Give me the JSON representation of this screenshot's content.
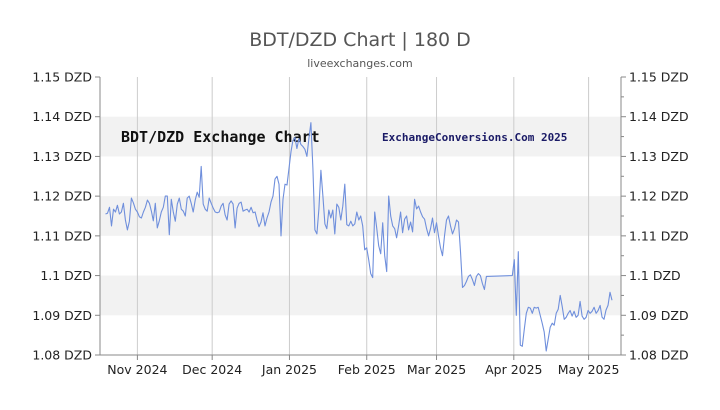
{
  "chart_data": {
    "type": "line",
    "title": "BDT/DZD Chart | 180 D",
    "subtitle": "liveexchanges.com",
    "watermark_left": "BDT/DZD Exchange Chart",
    "watermark_right": "ExchangeConversions.Com 2025",
    "ylim": [
      1.08,
      1.15
    ],
    "yticks": [
      {
        "value": 1.15,
        "label": "1.15 DZD"
      },
      {
        "value": 1.14,
        "label": "1.14 DZD"
      },
      {
        "value": 1.13,
        "label": "1.13 DZD"
      },
      {
        "value": 1.12,
        "label": "1.12 DZD"
      },
      {
        "value": 1.11,
        "label": "1.11 DZD"
      },
      {
        "value": 1.1,
        "label": "1.1 DZD"
      },
      {
        "value": 1.09,
        "label": "1.09 DZD"
      },
      {
        "value": 1.08,
        "label": "1.08 DZD"
      }
    ],
    "xticks": [
      {
        "label": "Nov 2024",
        "day": 0
      },
      {
        "label": "Dec 2024",
        "day": 30
      },
      {
        "label": "Jan 2025",
        "day": 61
      },
      {
        "label": "Feb 2025",
        "day": 92
      },
      {
        "label": "Mar 2025",
        "day": 120
      },
      {
        "label": "Apr 2025",
        "day": 151
      },
      {
        "label": "May 2025",
        "day": 181
      }
    ],
    "xlim": [
      -15,
      194
    ],
    "grid": true,
    "colors": {
      "line": "#6f8fdc",
      "band": "#f2f2f2",
      "grid": "#cccccc",
      "axis": "#888888"
    },
    "series": [
      {
        "values": [
          [
            -12.8,
            1.1155
          ],
          [
            -12.0,
            1.1157
          ],
          [
            -11.2,
            1.1172
          ],
          [
            -10.4,
            1.1125
          ],
          [
            -9.6,
            1.1167
          ],
          [
            -8.8,
            1.116
          ],
          [
            -8.0,
            1.1177
          ],
          [
            -7.2,
            1.1155
          ],
          [
            -6.4,
            1.116
          ],
          [
            -5.6,
            1.1182
          ],
          [
            -4.8,
            1.114
          ],
          [
            -4.0,
            1.1115
          ],
          [
            -3.2,
            1.1137
          ],
          [
            -2.4,
            1.1195
          ],
          [
            -1.6,
            1.1183
          ],
          [
            -0.8,
            1.1167
          ],
          [
            0.0,
            1.116
          ],
          [
            0.8,
            1.1148
          ],
          [
            1.6,
            1.1145
          ],
          [
            2.4,
            1.116
          ],
          [
            3.2,
            1.1172
          ],
          [
            4.0,
            1.119
          ],
          [
            4.8,
            1.1182
          ],
          [
            5.6,
            1.1162
          ],
          [
            6.4,
            1.1138
          ],
          [
            7.2,
            1.1182
          ],
          [
            8.0,
            1.112
          ],
          [
            8.8,
            1.1138
          ],
          [
            9.6,
            1.116
          ],
          [
            10.4,
            1.1172
          ],
          [
            11.2,
            1.12
          ],
          [
            12.0,
            1.12
          ],
          [
            12.8,
            1.1103
          ],
          [
            13.6,
            1.1192
          ],
          [
            14.4,
            1.116
          ],
          [
            15.2,
            1.1137
          ],
          [
            16.0,
            1.118
          ],
          [
            16.8,
            1.1195
          ],
          [
            17.6,
            1.1167
          ],
          [
            18.4,
            1.1162
          ],
          [
            19.2,
            1.115
          ],
          [
            20.0,
            1.1195
          ],
          [
            20.8,
            1.12
          ],
          [
            21.6,
            1.1182
          ],
          [
            22.4,
            1.116
          ],
          [
            23.2,
            1.119
          ],
          [
            24.0,
            1.121
          ],
          [
            24.8,
            1.1197
          ],
          [
            25.6,
            1.1275
          ],
          [
            26.4,
            1.118
          ],
          [
            27.2,
            1.1167
          ],
          [
            28.0,
            1.1162
          ],
          [
            28.8,
            1.1195
          ],
          [
            29.6,
            1.1182
          ],
          [
            30.4,
            1.117
          ],
          [
            31.2,
            1.116
          ],
          [
            32.0,
            1.1158
          ],
          [
            32.8,
            1.116
          ],
          [
            33.6,
            1.1175
          ],
          [
            34.4,
            1.1182
          ],
          [
            35.2,
            1.1153
          ],
          [
            36.0,
            1.114
          ],
          [
            36.8,
            1.118
          ],
          [
            37.6,
            1.1188
          ],
          [
            38.4,
            1.118
          ],
          [
            39.2,
            1.112
          ],
          [
            40.0,
            1.117
          ],
          [
            40.8,
            1.1182
          ],
          [
            41.6,
            1.1185
          ],
          [
            42.4,
            1.1162
          ],
          [
            43.2,
            1.1165
          ],
          [
            44.0,
            1.1167
          ],
          [
            44.8,
            1.116
          ],
          [
            45.6,
            1.1172
          ],
          [
            46.4,
            1.1158
          ],
          [
            47.2,
            1.116
          ],
          [
            48.0,
            1.114
          ],
          [
            48.8,
            1.1123
          ],
          [
            49.6,
            1.1135
          ],
          [
            50.4,
            1.1158
          ],
          [
            51.2,
            1.1125
          ],
          [
            52.0,
            1.1145
          ],
          [
            52.8,
            1.116
          ],
          [
            53.6,
            1.1185
          ],
          [
            54.4,
            1.12
          ],
          [
            55.2,
            1.1243
          ],
          [
            56.0,
            1.125
          ],
          [
            56.8,
            1.123
          ],
          [
            57.6,
            1.11
          ],
          [
            58.4,
            1.1192
          ],
          [
            59.2,
            1.123
          ],
          [
            60.0,
            1.1228
          ],
          [
            60.8,
            1.127
          ],
          [
            61.6,
            1.1312
          ],
          [
            62.4,
            1.134
          ],
          [
            63.2,
            1.1348
          ],
          [
            64.0,
            1.132
          ],
          [
            64.8,
            1.1345
          ],
          [
            65.6,
            1.133
          ],
          [
            66.4,
            1.1325
          ],
          [
            67.2,
            1.1318
          ],
          [
            68.0,
            1.13
          ],
          [
            68.8,
            1.1345
          ],
          [
            69.6,
            1.1385
          ],
          [
            70.4,
            1.127
          ],
          [
            71.2,
            1.1115
          ],
          [
            72.0,
            1.1105
          ],
          [
            72.8,
            1.1168
          ],
          [
            73.6,
            1.1265
          ],
          [
            74.4,
            1.12
          ],
          [
            75.2,
            1.113
          ],
          [
            76.0,
            1.1118
          ],
          [
            76.8,
            1.1165
          ],
          [
            77.6,
            1.1145
          ],
          [
            78.4,
            1.1165
          ],
          [
            79.2,
            1.1105
          ],
          [
            80.0,
            1.118
          ],
          [
            80.8,
            1.1172
          ],
          [
            81.6,
            1.114
          ],
          [
            82.4,
            1.1175
          ],
          [
            83.2,
            1.123
          ],
          [
            84.0,
            1.1128
          ],
          [
            84.8,
            1.1125
          ],
          [
            85.6,
            1.1137
          ],
          [
            86.4,
            1.1125
          ],
          [
            87.2,
            1.113
          ],
          [
            88.0,
            1.116
          ],
          [
            88.8,
            1.114
          ],
          [
            89.6,
            1.115
          ],
          [
            90.4,
            1.1125
          ],
          [
            91.2,
            1.1065
          ],
          [
            92.0,
            1.107
          ],
          [
            92.8,
            1.104
          ],
          [
            93.6,
            1.1005
          ],
          [
            94.4,
            1.0995
          ],
          [
            95.2,
            1.116
          ],
          [
            96.0,
            1.112
          ],
          [
            96.8,
            1.1075
          ],
          [
            97.6,
            1.1055
          ],
          [
            98.4,
            1.1133
          ],
          [
            99.2,
            1.105
          ],
          [
            100.0,
            1.101
          ],
          [
            100.8,
            1.12
          ],
          [
            101.6,
            1.115
          ],
          [
            102.4,
            1.1125
          ],
          [
            103.2,
            1.1118
          ],
          [
            104.0,
            1.1095
          ],
          [
            104.8,
            1.1125
          ],
          [
            105.6,
            1.116
          ],
          [
            106.4,
            1.1108
          ],
          [
            107.2,
            1.1142
          ],
          [
            108.0,
            1.115
          ],
          [
            108.8,
            1.1115
          ],
          [
            109.6,
            1.1135
          ],
          [
            110.4,
            1.111
          ],
          [
            111.2,
            1.1192
          ],
          [
            112.0,
            1.1168
          ],
          [
            112.8,
            1.1175
          ],
          [
            113.6,
            1.116
          ],
          [
            114.4,
            1.1148
          ],
          [
            115.2,
            1.1142
          ],
          [
            116.0,
            1.1118
          ],
          [
            116.8,
            1.11
          ],
          [
            117.6,
            1.1118
          ],
          [
            118.4,
            1.1145
          ],
          [
            119.2,
            1.1108
          ],
          [
            120.0,
            1.1133
          ],
          [
            120.8,
            1.11
          ],
          [
            121.6,
            1.107
          ],
          [
            122.4,
            1.105
          ],
          [
            123.2,
            1.11
          ],
          [
            124.0,
            1.114
          ],
          [
            124.8,
            1.115
          ],
          [
            125.6,
            1.1125
          ],
          [
            126.4,
            1.1105
          ],
          [
            127.2,
            1.1118
          ],
          [
            128.0,
            1.114
          ],
          [
            128.8,
            1.1135
          ],
          [
            129.6,
            1.106
          ],
          [
            130.4,
            1.097
          ],
          [
            131.2,
            1.0975
          ],
          [
            132.0,
            1.0985
          ],
          [
            132.8,
            1.0998
          ],
          [
            133.6,
            1.1002
          ],
          [
            134.4,
            1.099
          ],
          [
            135.2,
            1.0975
          ],
          [
            136.0,
            1.0998
          ],
          [
            136.8,
            1.1005
          ],
          [
            137.6,
            1.1
          ],
          [
            138.4,
            1.098
          ],
          [
            139.2,
            1.0965
          ],
          [
            140.0,
            1.0998
          ],
          [
            150.4,
            1.1
          ],
          [
            151.2,
            1.104
          ],
          [
            152.0,
            1.09
          ],
          [
            152.8,
            1.106
          ],
          [
            153.6,
            1.0825
          ],
          [
            154.4,
            1.0822
          ],
          [
            155.2,
            1.0865
          ],
          [
            156.0,
            1.0905
          ],
          [
            156.8,
            1.092
          ],
          [
            157.6,
            1.0918
          ],
          [
            158.4,
            1.0905
          ],
          [
            159.2,
            1.092
          ],
          [
            160.0,
            1.0918
          ],
          [
            160.8,
            1.092
          ],
          [
            161.6,
            1.09
          ],
          [
            162.4,
            1.088
          ],
          [
            163.2,
            1.0858
          ],
          [
            164.0,
            1.081
          ],
          [
            164.8,
            1.084
          ],
          [
            165.6,
            1.087
          ],
          [
            166.4,
            1.088
          ],
          [
            167.2,
            1.0875
          ],
          [
            168.0,
            1.0905
          ],
          [
            168.8,
            1.0915
          ],
          [
            169.6,
            1.095
          ],
          [
            170.4,
            1.0922
          ],
          [
            171.2,
            1.089
          ],
          [
            172.0,
            1.0895
          ],
          [
            172.8,
            1.0905
          ],
          [
            173.6,
            1.0912
          ],
          [
            174.4,
            1.0898
          ],
          [
            175.2,
            1.091
          ],
          [
            176.0,
            1.0895
          ],
          [
            176.8,
            1.09
          ],
          [
            177.6,
            1.0935
          ],
          [
            178.4,
            1.0898
          ],
          [
            179.2,
            1.089
          ],
          [
            180.0,
            1.0895
          ],
          [
            180.8,
            1.0912
          ],
          [
            181.6,
            1.0905
          ],
          [
            182.4,
            1.091
          ],
          [
            183.2,
            1.092
          ],
          [
            184.0,
            1.0905
          ],
          [
            184.8,
            1.0912
          ],
          [
            185.6,
            1.0925
          ],
          [
            186.4,
            1.0895
          ],
          [
            187.2,
            1.089
          ],
          [
            188.0,
            1.0913
          ],
          [
            188.8,
            1.0925
          ],
          [
            189.6,
            1.0958
          ],
          [
            190.4,
            1.0938
          ]
        ]
      }
    ]
  }
}
